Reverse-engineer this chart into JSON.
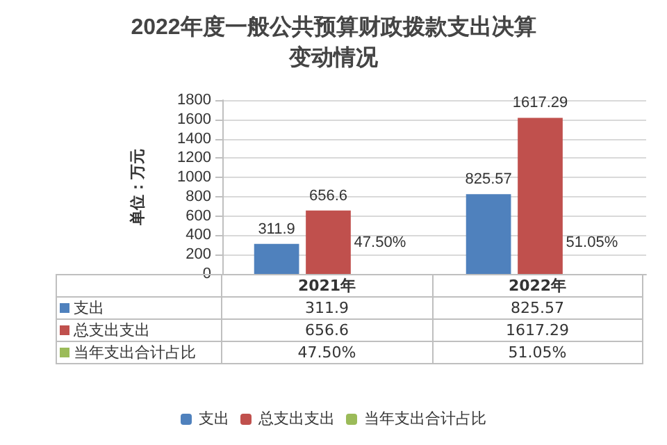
{
  "chart_data": {
    "type": "bar",
    "title": "2022年度一般公共预算财政拨款支出决算变动情况",
    "ylabel": "单位：万元",
    "categories": [
      "2021年",
      "2022年"
    ],
    "series": [
      {
        "name": "支出",
        "color": "#4f81bd",
        "values": [
          311.9,
          825.57
        ],
        "value_labels": [
          "311.9",
          "825.57"
        ]
      },
      {
        "name": "总支出支出",
        "color": "#c0504d",
        "values": [
          656.6,
          1617.29
        ],
        "value_labels": [
          "656.6",
          "1617.29"
        ]
      },
      {
        "name": "当年支出合计占比",
        "color": "#9bbb59",
        "values": [
          0.475,
          0.5105
        ],
        "value_labels": [
          "47.50%",
          "51.05%"
        ]
      }
    ],
    "ylim": [
      0,
      1800
    ],
    "yticks": [
      0,
      200,
      400,
      600,
      800,
      1000,
      1200,
      1400,
      1600,
      1800
    ],
    "grid": "y",
    "legend": "bottom"
  }
}
